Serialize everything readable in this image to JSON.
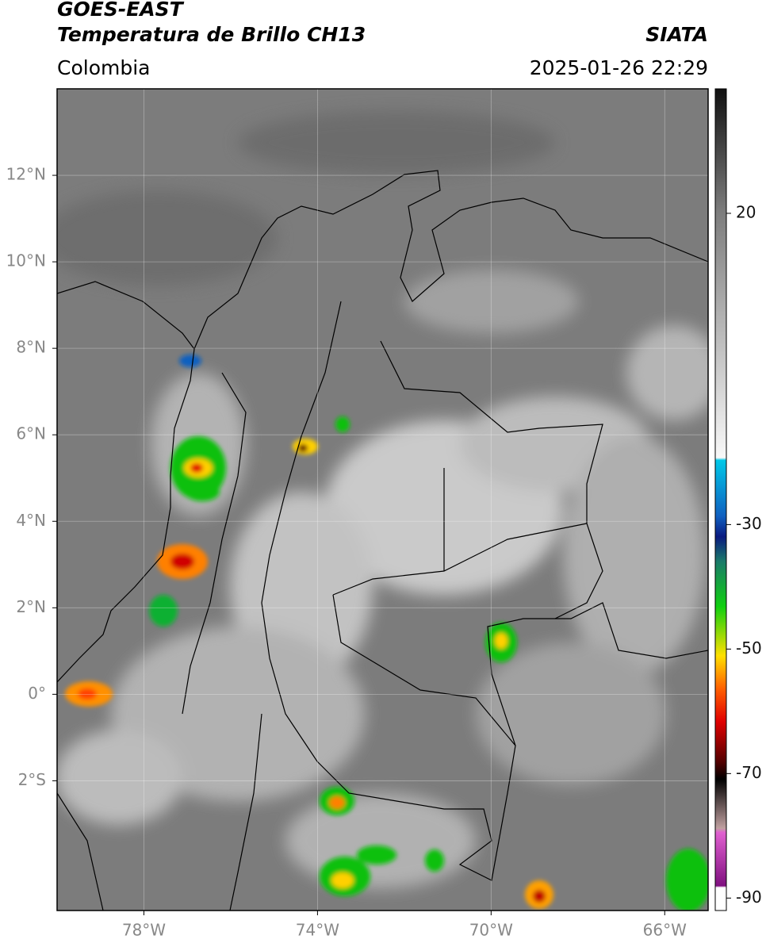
{
  "header": {
    "title": "GOES-EAST",
    "subtitle": "Temperatura de Brillo CH13",
    "region": "Colombia",
    "agency": "SIATA",
    "datetime": "2025-01-26 22:29"
  },
  "map": {
    "lonlim": [
      -80,
      -65
    ],
    "latlim": [
      -5,
      14
    ],
    "lat_ticks": [
      {
        "value": 12,
        "label": "12°N"
      },
      {
        "value": 10,
        "label": "10°N"
      },
      {
        "value": 8,
        "label": "8°N"
      },
      {
        "value": 6,
        "label": "6°N"
      },
      {
        "value": 4,
        "label": "4°N"
      },
      {
        "value": 2,
        "label": "2°N"
      },
      {
        "value": 0,
        "label": "0°"
      },
      {
        "value": -2,
        "label": "2°S"
      }
    ],
    "lon_ticks": [
      {
        "value": -78,
        "label": "78°W"
      },
      {
        "value": -74,
        "label": "74°W"
      },
      {
        "value": -70,
        "label": "70°W"
      },
      {
        "value": -66,
        "label": "66°W"
      }
    ]
  },
  "colorbar": {
    "lim": [
      -92,
      40
    ],
    "ticks": [
      20,
      -30,
      -50,
      -70,
      -90
    ]
  }
}
